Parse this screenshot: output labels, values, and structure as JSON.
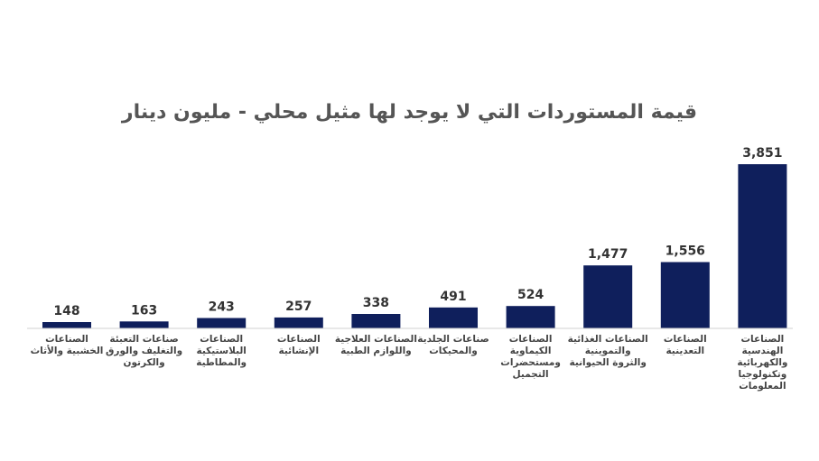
{
  "chart_data": {
    "type": "bar",
    "title": "قيمة المستوردات التي لا يوجد لها مثيل محلي - مليون دينار",
    "categories": [
      "الصناعات الخشبية والأثاث",
      "صناعات التعبئة والتغليف والورق والكرتون",
      "الصناعات البلاستيكية والمطاطية",
      "الصناعات الإنشائية",
      "الصناعات العلاجية واللوازم الطبية",
      "صناعات الجلدية والمحيكات",
      "الصناعات الكيماوية ومستحضرات التجميل",
      "الصناعات الغذائية والتموينية والثروة الحيوانية",
      "الصناعات التعدينية",
      "الصناعات الهندسية والكهربائية وتكنولوجيا المعلومات"
    ],
    "values": [
      148,
      163,
      243,
      257,
      338,
      491,
      524,
      1477,
      1556,
      3851
    ],
    "value_labels": [
      "148",
      "163",
      "243",
      "257",
      "338",
      "491",
      "524",
      "1,477",
      "1,556",
      "3,851"
    ],
    "bar_color": "#0f1f5c",
    "ylim": [
      0,
      3851
    ]
  }
}
